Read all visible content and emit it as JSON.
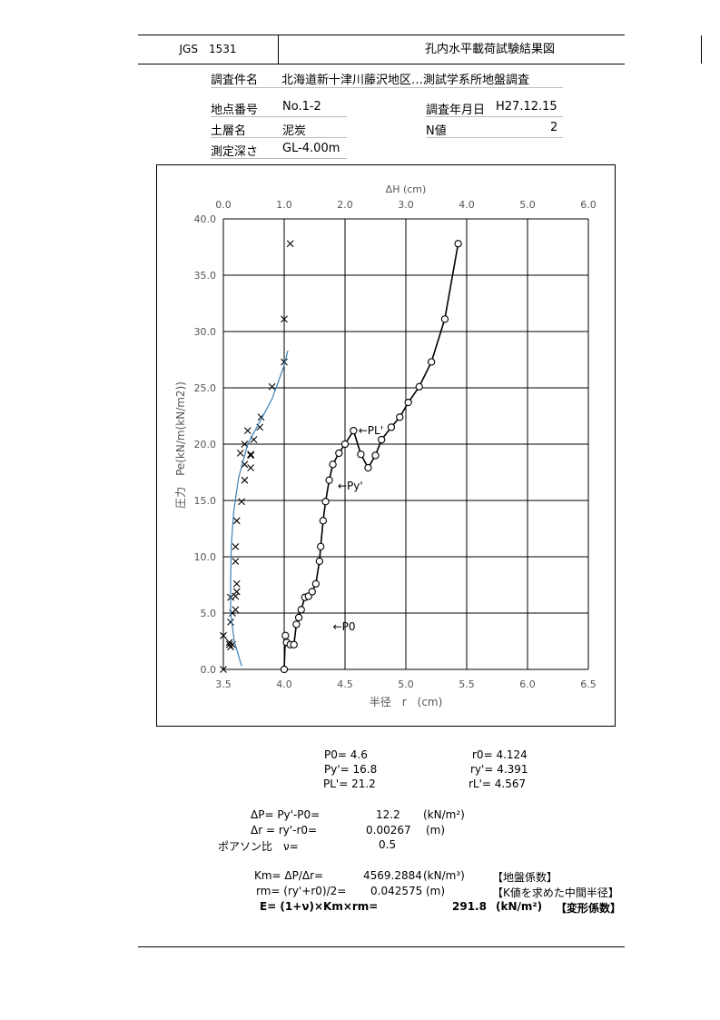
{
  "header": {
    "code": "JGS　1531",
    "title": "孔内水平載荷試験結果図"
  },
  "info": {
    "project_label": "調査件名",
    "project_value": "北海道新十津川藤沢地区…測試学系所地盤調査",
    "point_label": "地点番号",
    "point_value": "No.1-2",
    "date_label": "調査年月日",
    "date_value": "H27.12.15",
    "soil_label": "土層名",
    "soil_value": "泥炭",
    "n_label": "N値",
    "n_value": "2",
    "depth_label": "測定深さ",
    "depth_value": "GL-4.00m"
  },
  "chart_data": {
    "type": "scatter",
    "xlabel": "半径　r　(cm)",
    "x2label": "ΔH (cm)",
    "ylabel": "圧力　Pe(kN/m(kN/m2))",
    "xlim": [
      3.5,
      6.5
    ],
    "x2lim": [
      0.0,
      6.0
    ],
    "ylim": [
      0,
      40
    ],
    "x_ticks": [
      "3.5",
      "4.0",
      "4.5",
      "5.0",
      "5.5",
      "6.0",
      "6.5"
    ],
    "x2_ticks": [
      "0.0",
      "1.0",
      "2.0",
      "3.0",
      "4.0",
      "5.0",
      "6.0"
    ],
    "y_ticks": [
      "0.0",
      "5.0",
      "10.0",
      "15.0",
      "20.0",
      "25.0",
      "30.0",
      "35.0",
      "40.0"
    ],
    "grid": true,
    "series": [
      {
        "marker": "circle",
        "line": true,
        "color": "#000000",
        "x": [
          4.0,
          4.01,
          4.02,
          4.05,
          4.08,
          4.1,
          4.12,
          4.14,
          4.17,
          4.2,
          4.23,
          4.26,
          4.29,
          4.3,
          4.32,
          4.34,
          4.37,
          4.4,
          4.45,
          4.5,
          4.57,
          4.63,
          4.69,
          4.75,
          4.8,
          4.88,
          4.95,
          5.02,
          5.11,
          5.21,
          5.32,
          5.43
        ],
        "y": [
          0.0,
          3.0,
          2.4,
          2.2,
          2.2,
          4.0,
          4.6,
          5.3,
          6.4,
          6.5,
          6.9,
          7.6,
          9.6,
          10.9,
          13.2,
          14.9,
          16.8,
          18.2,
          19.2,
          20.0,
          21.2,
          19.1,
          17.9,
          19.0,
          20.4,
          21.5,
          22.4,
          23.7,
          25.1,
          27.3,
          31.1,
          37.8
        ]
      },
      {
        "marker": "cross",
        "line": false,
        "color": "#000000",
        "x": [
          0.0,
          0.0,
          0.1,
          0.1,
          0.12,
          0.15,
          0.12,
          0.15,
          0.2,
          0.12,
          0.2,
          0.22,
          0.22,
          0.2,
          0.2,
          0.22,
          0.3,
          0.35,
          0.35,
          0.28,
          0.35,
          0.4,
          0.45,
          0.45,
          0.45,
          0.5,
          0.6,
          0.62,
          0.8,
          1.0,
          1.0,
          1.1
        ],
        "y": [
          0.0,
          3.0,
          2.4,
          2.2,
          2.0,
          2.2,
          4.2,
          5.0,
          5.3,
          6.4,
          6.5,
          6.9,
          7.6,
          9.6,
          10.9,
          13.2,
          14.9,
          16.8,
          18.2,
          19.2,
          20.0,
          21.2,
          17.9,
          19.0,
          19.1,
          20.4,
          21.5,
          22.4,
          25.1,
          27.3,
          31.1,
          37.8
        ]
      },
      {
        "marker": "none",
        "line": true,
        "color": "#3a7fb5",
        "x": [
          0.3,
          0.18,
          0.12,
          0.12,
          0.13,
          0.17,
          0.25,
          0.4,
          0.6,
          0.8,
          0.9,
          1.0,
          1.06
        ],
        "y": [
          0.3,
          2.5,
          5.0,
          8.0,
          11.0,
          14.0,
          17.0,
          20.0,
          22.0,
          24.0,
          25.5,
          27.0,
          28.3
        ]
      }
    ],
    "annotations": [
      {
        "text": "←P0",
        "x": 4.4,
        "y": 3.8
      },
      {
        "text": "←Py'",
        "x": 4.44,
        "y": 16.3
      },
      {
        "text": "←PL'",
        "x": 4.61,
        "y": 21.2
      }
    ]
  },
  "results": {
    "p0": "P0= 4.6",
    "py": "Py'= 16.8",
    "pl": "PL'= 21.2",
    "r0": "r0= 4.124",
    "ry": "ry'= 4.391",
    "rl": "rL'= 4.567",
    "dp_label": "ΔP= Py'-P0=",
    "dp_value": "12.2",
    "dp_unit": "(kN/m²)",
    "dr_label": "Δr = ry'-r0=",
    "dr_value": "0.00267",
    "dr_unit": "(m)",
    "nu_label": "ポアソン比　ν=",
    "nu_value": "0.5",
    "km_label": "Km= ΔP/Δr=",
    "km_value": "4569.2884",
    "km_unit": "(kN/m³)",
    "km_note": "【地盤係数】",
    "rm_label": "rm= (ry'+r0)/2=",
    "rm_value": "0.042575",
    "rm_unit": "(m)",
    "rm_note": "【K値を求めた中間半径】",
    "e_label": "E= (1+ν)×Km×rm=",
    "e_value": "291.8",
    "e_unit": "(kN/m²)",
    "e_note": "【変形係数】"
  }
}
